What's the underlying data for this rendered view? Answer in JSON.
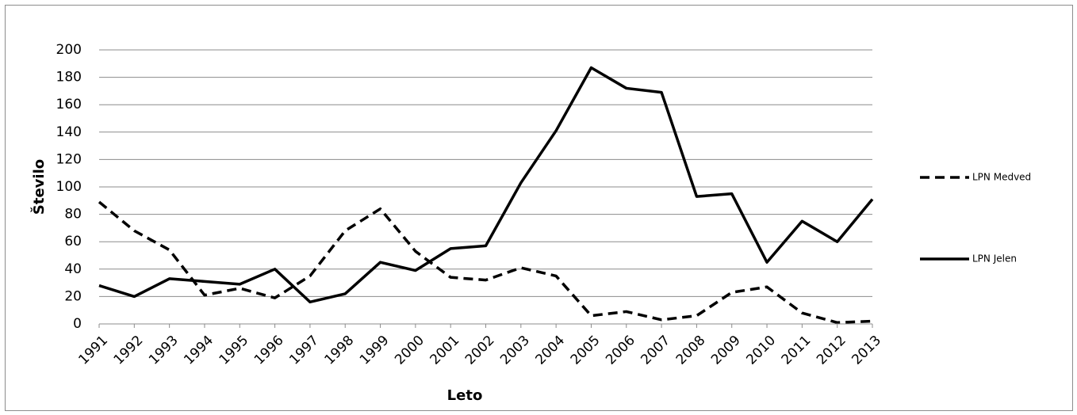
{
  "chart_data": {
    "type": "line",
    "x_label": "Leto",
    "y_label": "Število",
    "categories": [
      "1991",
      "1992",
      "1993",
      "1994",
      "1995",
      "1996",
      "1997",
      "1998",
      "1999",
      "2000",
      "2001",
      "2002",
      "2003",
      "2004",
      "2005",
      "2006",
      "2007",
      "2008",
      "2009",
      "2010",
      "2011",
      "2012",
      "2013"
    ],
    "series": [
      {
        "name": "LPN Medved",
        "color": "#000000",
        "style": "dashed",
        "values": [
          89,
          68,
          54,
          21,
          26,
          19,
          35,
          68,
          84,
          53,
          34,
          32,
          41,
          35,
          6,
          9,
          3,
          6,
          23,
          27,
          8,
          1,
          2
        ]
      },
      {
        "name": "LPN Jelen",
        "color": "#000000",
        "style": "solid",
        "values": [
          28,
          20,
          33,
          31,
          29,
          40,
          16,
          22,
          45,
          39,
          55,
          57,
          103,
          141,
          187,
          172,
          169,
          93,
          95,
          45,
          75,
          60,
          91
        ]
      }
    ],
    "ylim": [
      0,
      200
    ],
    "yticks": [
      0,
      20,
      40,
      60,
      80,
      100,
      120,
      140,
      160,
      180,
      200
    ],
    "grid": true,
    "legend": "right"
  }
}
